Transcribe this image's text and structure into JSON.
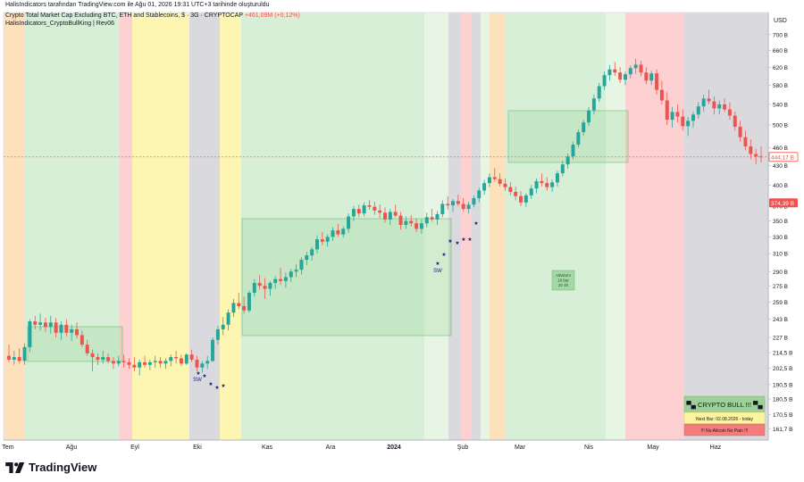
{
  "header": {
    "attribution": "HalisIndicators tarafından TradingView.com ile Ağu 01, 2026 19:31 UTC+3 tarihinde oluşturuldu",
    "symbol_title": "Crypto Total Market Cap Excluding BTC, ETH and Stablecoins, $ · 3G · CRYPTOCAP",
    "change": "+461,09M (+0,12%)",
    "indicator": "HalisIndicators_CryptoBullKing | Rev06"
  },
  "brand": {
    "name": "TradingView",
    "icon": "tradingview-logo-icon"
  },
  "colors": {
    "up": "#26a69a",
    "down": "#ef5350",
    "zone_green": "#d8efd7",
    "zone_lightgreen": "#e6f5e4",
    "zone_yellow": "#fdf6b2",
    "zone_red": "#fdd1d1",
    "zone_orange": "#fde1bd",
    "zone_gray": "#dadade",
    "star": "#1a237e"
  },
  "chart_data": {
    "type": "candlestick",
    "ylabel": "USD",
    "y_scale": "log",
    "ylim": [
      155,
      760
    ],
    "y_ticks": [
      "700 B",
      "660 B",
      "620 B",
      "580 B",
      "540 B",
      "500 B",
      "460 B",
      "430 B",
      "400 B",
      "370 B",
      "350 B",
      "330 B",
      "310 B",
      "290 B",
      "275 B",
      "259 B",
      "243 B",
      "227 B",
      "214,5 B",
      "202,5 B",
      "190,5 B",
      "180,5 B",
      "170,5 B",
      "161,7 B"
    ],
    "x_ticks": [
      "Tem",
      "Ağu",
      "Eyl",
      "Eki",
      "Kas",
      "Ara",
      "2024",
      "Şub",
      "Mar",
      "Nis",
      "May",
      "Haz"
    ],
    "x_tick_bold": [
      false,
      false,
      false,
      false,
      false,
      false,
      true,
      false,
      false,
      false,
      false,
      false
    ],
    "price_labels": [
      {
        "label": "444,17 B",
        "value": 444.17,
        "style": "outline"
      },
      {
        "label": "374,39 B",
        "value": 374.39,
        "style": "filled"
      }
    ],
    "candles": [
      [
        212,
        221,
        207,
        209
      ],
      [
        209,
        216,
        205,
        211
      ],
      [
        211,
        218,
        206,
        208
      ],
      [
        208,
        222,
        205,
        219
      ],
      [
        219,
        243,
        215,
        241
      ],
      [
        241,
        246,
        234,
        238
      ],
      [
        238,
        248,
        233,
        240
      ],
      [
        240,
        244,
        232,
        236
      ],
      [
        236,
        246,
        230,
        240
      ],
      [
        240,
        244,
        227,
        231
      ],
      [
        231,
        241,
        225,
        238
      ],
      [
        238,
        243,
        228,
        231
      ],
      [
        231,
        238,
        224,
        234
      ],
      [
        234,
        240,
        226,
        229
      ],
      [
        229,
        233,
        219,
        221
      ],
      [
        221,
        225,
        212,
        214
      ],
      [
        214,
        217,
        200,
        211
      ],
      [
        211,
        214,
        205,
        209
      ],
      [
        209,
        216,
        206,
        211
      ],
      [
        211,
        214,
        206,
        208
      ],
      [
        208,
        211,
        202,
        206
      ],
      [
        206,
        212,
        204,
        208
      ],
      [
        208,
        213,
        203,
        207
      ],
      [
        207,
        210,
        202,
        205
      ],
      [
        205,
        211,
        200,
        203
      ],
      [
        203,
        209,
        197,
        207
      ],
      [
        207,
        212,
        203,
        205
      ],
      [
        205,
        209,
        201,
        207
      ],
      [
        207,
        212,
        203,
        208
      ],
      [
        208,
        211,
        203,
        206
      ],
      [
        206,
        210,
        202,
        208
      ],
      [
        208,
        213,
        204,
        211
      ],
      [
        211,
        216,
        206,
        210
      ],
      [
        210,
        213,
        204,
        206
      ],
      [
        206,
        214,
        205,
        213
      ],
      [
        213,
        217,
        207,
        209
      ],
      [
        209,
        212,
        200,
        203
      ],
      [
        203,
        208,
        199,
        206
      ],
      [
        206,
        212,
        202,
        208
      ],
      [
        208,
        227,
        207,
        225
      ],
      [
        225,
        237,
        221,
        234
      ],
      [
        234,
        245,
        229,
        238
      ],
      [
        238,
        252,
        233,
        249
      ],
      [
        249,
        262,
        245,
        258
      ],
      [
        258,
        268,
        252,
        255
      ],
      [
        255,
        264,
        248,
        251
      ],
      [
        251,
        270,
        249,
        268
      ],
      [
        268,
        282,
        264,
        278
      ],
      [
        278,
        286,
        271,
        275
      ],
      [
        275,
        283,
        262,
        272
      ],
      [
        272,
        280,
        265,
        278
      ],
      [
        278,
        285,
        272,
        282
      ],
      [
        282,
        294,
        276,
        280
      ],
      [
        280,
        289,
        273,
        284
      ],
      [
        284,
        293,
        279,
        290
      ],
      [
        290,
        298,
        284,
        292
      ],
      [
        292,
        306,
        287,
        303
      ],
      [
        303,
        312,
        297,
        308
      ],
      [
        308,
        318,
        302,
        315
      ],
      [
        315,
        332,
        310,
        327
      ],
      [
        327,
        336,
        320,
        324
      ],
      [
        324,
        333,
        318,
        330
      ],
      [
        330,
        342,
        325,
        338
      ],
      [
        338,
        346,
        330,
        333
      ],
      [
        333,
        343,
        329,
        340
      ],
      [
        340,
        360,
        335,
        356
      ],
      [
        356,
        370,
        350,
        366
      ],
      [
        366,
        372,
        355,
        360
      ],
      [
        360,
        375,
        356,
        371
      ],
      [
        371,
        378,
        365,
        369
      ],
      [
        369,
        376,
        358,
        364
      ],
      [
        364,
        372,
        354,
        361
      ],
      [
        361,
        368,
        348,
        352
      ],
      [
        352,
        366,
        345,
        362
      ],
      [
        362,
        372,
        355,
        357
      ],
      [
        357,
        362,
        339,
        345
      ],
      [
        345,
        356,
        340,
        350
      ],
      [
        350,
        358,
        343,
        347
      ],
      [
        347,
        353,
        336,
        340
      ],
      [
        340,
        352,
        334,
        347
      ],
      [
        347,
        361,
        342,
        355
      ],
      [
        355,
        366,
        349,
        352
      ],
      [
        352,
        363,
        345,
        359
      ],
      [
        359,
        378,
        355,
        373
      ],
      [
        373,
        384,
        365,
        371
      ],
      [
        371,
        380,
        362,
        377
      ],
      [
        377,
        386,
        370,
        373
      ],
      [
        373,
        381,
        363,
        366
      ],
      [
        366,
        376,
        360,
        372
      ],
      [
        372,
        385,
        368,
        381
      ],
      [
        381,
        396,
        375,
        392
      ],
      [
        392,
        408,
        386,
        403
      ],
      [
        403,
        418,
        397,
        412
      ],
      [
        412,
        426,
        405,
        409
      ],
      [
        409,
        418,
        398,
        402
      ],
      [
        402,
        410,
        392,
        397
      ],
      [
        397,
        404,
        385,
        390
      ],
      [
        390,
        398,
        378,
        384
      ],
      [
        384,
        391,
        370,
        375
      ],
      [
        375,
        388,
        369,
        385
      ],
      [
        385,
        400,
        380,
        395
      ],
      [
        395,
        410,
        388,
        406
      ],
      [
        406,
        418,
        398,
        403
      ],
      [
        403,
        412,
        392,
        397
      ],
      [
        397,
        408,
        390,
        404
      ],
      [
        404,
        422,
        398,
        418
      ],
      [
        418,
        438,
        413,
        432
      ],
      [
        432,
        450,
        425,
        445
      ],
      [
        445,
        470,
        440,
        465
      ],
      [
        465,
        492,
        460,
        487
      ],
      [
        487,
        510,
        480,
        505
      ],
      [
        505,
        535,
        498,
        528
      ],
      [
        528,
        560,
        520,
        552
      ],
      [
        552,
        585,
        545,
        578
      ],
      [
        578,
        610,
        570,
        602
      ],
      [
        602,
        625,
        590,
        615
      ],
      [
        615,
        632,
        600,
        608
      ],
      [
        608,
        620,
        585,
        592
      ],
      [
        592,
        610,
        580,
        604
      ],
      [
        604,
        624,
        595,
        618
      ],
      [
        618,
        640,
        605,
        626
      ],
      [
        626,
        635,
        600,
        608
      ],
      [
        608,
        620,
        582,
        590
      ],
      [
        590,
        612,
        580,
        606
      ],
      [
        606,
        615,
        560,
        570
      ],
      [
        570,
        590,
        540,
        548
      ],
      [
        548,
        565,
        500,
        510
      ],
      [
        510,
        535,
        495,
        525
      ],
      [
        525,
        540,
        505,
        516
      ],
      [
        516,
        530,
        490,
        498
      ],
      [
        498,
        515,
        480,
        508
      ],
      [
        508,
        526,
        495,
        520
      ],
      [
        520,
        545,
        512,
        536
      ],
      [
        536,
        560,
        525,
        552
      ],
      [
        552,
        570,
        540,
        546
      ],
      [
        546,
        556,
        520,
        532
      ],
      [
        532,
        548,
        520,
        540
      ],
      [
        540,
        552,
        525,
        530
      ],
      [
        530,
        544,
        510,
        518
      ],
      [
        518,
        526,
        490,
        497
      ],
      [
        497,
        508,
        470,
        478
      ],
      [
        478,
        490,
        455,
        462
      ],
      [
        462,
        474,
        440,
        449
      ],
      [
        449,
        458,
        432,
        445
      ],
      [
        445,
        462,
        435,
        444
      ]
    ]
  }
}
